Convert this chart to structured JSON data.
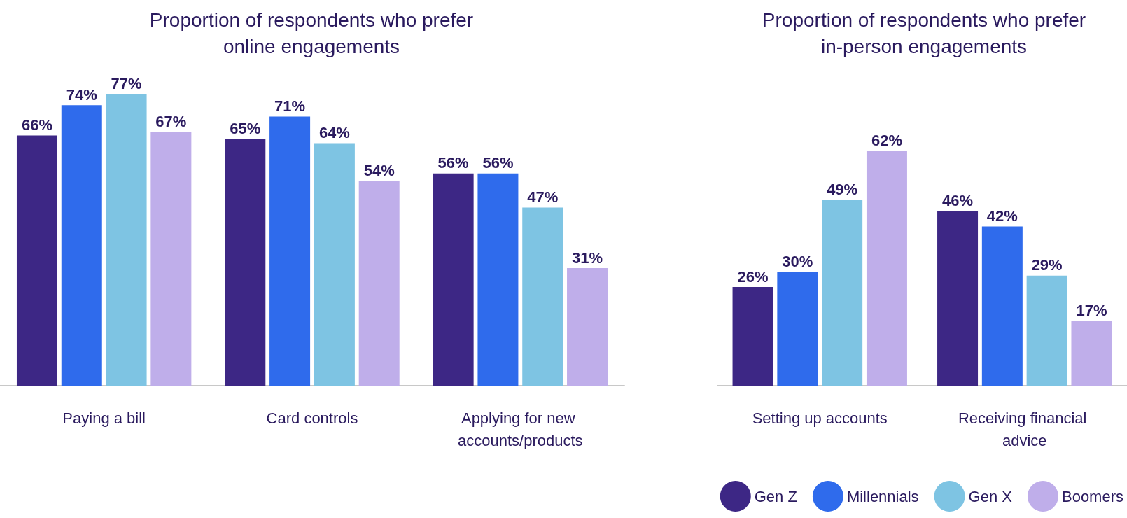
{
  "chart_data": [
    {
      "type": "bar",
      "title": "Proportion of respondents who prefer\nonline engagements",
      "categories": [
        "Paying a bill",
        "Card controls",
        "Applying for new accounts/products"
      ],
      "series": [
        {
          "color": "#3d2785",
          "values": [
            66,
            65,
            56
          ],
          "value_labels": [
            "66%",
            "65%",
            "56%"
          ]
        },
        {
          "color": "#2f6bec",
          "values": [
            74,
            71,
            56
          ],
          "value_labels": [
            "74%",
            "71%",
            "56%"
          ]
        },
        {
          "color": "#7ec4e3",
          "values": [
            77,
            64,
            47
          ],
          "value_labels": [
            "77%",
            "64%",
            "47%"
          ]
        },
        {
          "color": "#bfaeea",
          "values": [
            67,
            54,
            31
          ],
          "value_labels": [
            "67%",
            "54%",
            "31%"
          ]
        }
      ],
      "legend": false
    },
    {
      "type": "bar",
      "title": "Proportion of respondents who prefer\nin-person engagements",
      "categories": [
        "Setting up accounts",
        "Receiving financial advice"
      ],
      "series": [
        {
          "name": "Gen Z",
          "color": "#3d2785",
          "values": [
            26,
            46
          ],
          "value_labels": [
            "26%",
            "46%"
          ]
        },
        {
          "name": "Millennials",
          "color": "#2f6bec",
          "values": [
            30,
            42
          ],
          "value_labels": [
            "30%",
            "42%"
          ]
        },
        {
          "name": "Gen X",
          "color": "#7ec4e3",
          "values": [
            49,
            29
          ],
          "value_labels": [
            "49%",
            "29%"
          ]
        },
        {
          "name": "Boomers",
          "color": "#bfaeea",
          "values": [
            62,
            17
          ],
          "value_labels": [
            "62%",
            "17%"
          ]
        }
      ],
      "legend": "bottom right"
    }
  ]
}
